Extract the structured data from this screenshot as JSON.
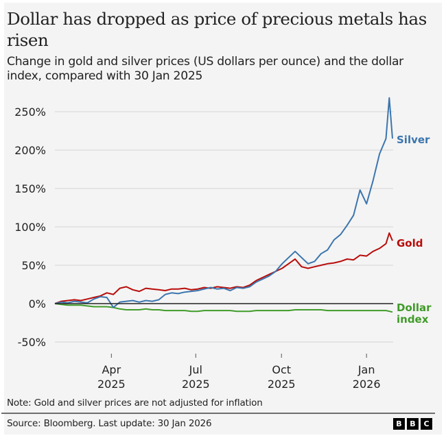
{
  "chart_data": {
    "type": "line",
    "title": "Dollar has dropped as price of precious metals has risen",
    "subtitle": "Change in gold and silver prices (US dollars per ounce) and the dollar index, compared with 30 Jan 2025",
    "xlabel": "",
    "ylabel": "",
    "x_start": "30 Jan 2025",
    "x_end": "30 Jan 2026",
    "x_unit": "weeks since 30 Jan 2025",
    "xlim": [
      0,
      52
    ],
    "ylim": [
      -50,
      250
    ],
    "y_ticks": [
      -50,
      0,
      50,
      100,
      150,
      200,
      250
    ],
    "y_tick_labels": [
      "-50%",
      "0%",
      "50%",
      "100%",
      "150%",
      "200%",
      "250%"
    ],
    "x_ticks": [
      {
        "week": 8.7,
        "label_line1": "Apr",
        "label_line2": "2025"
      },
      {
        "week": 21.7,
        "label_line1": "Jul",
        "label_line2": "2025"
      },
      {
        "week": 34.9,
        "label_line1": "Oct",
        "label_line2": "2025"
      },
      {
        "week": 48.0,
        "label_line1": "Jan",
        "label_line2": "2026"
      }
    ],
    "grid": true,
    "zero_line": true,
    "legend": "direct labels at right end of lines",
    "series": [
      {
        "name": "Silver",
        "color": "#3b75ad",
        "x": [
          0,
          1,
          2,
          3,
          4,
          5,
          6,
          7,
          8,
          9,
          10,
          11,
          12,
          13,
          14,
          15,
          16,
          17,
          18,
          19,
          20,
          21,
          22,
          23,
          24,
          25,
          26,
          27,
          28,
          29,
          30,
          31,
          32,
          33,
          34,
          35,
          36,
          37,
          38,
          39,
          40,
          41,
          42,
          43,
          44,
          45,
          46,
          47,
          48,
          49,
          50,
          51,
          51.5,
          52
        ],
        "values": [
          0,
          2,
          1,
          3,
          2,
          1,
          6,
          9,
          8,
          -5,
          2,
          3,
          4,
          2,
          4,
          3,
          5,
          12,
          14,
          13,
          15,
          16,
          17,
          19,
          21,
          19,
          20,
          17,
          21,
          20,
          22,
          28,
          32,
          36,
          42,
          52,
          60,
          68,
          60,
          52,
          55,
          65,
          70,
          83,
          90,
          102,
          115,
          148,
          130,
          160,
          195,
          215,
          268,
          215
        ]
      },
      {
        "name": "Gold",
        "color": "#b80c09",
        "x": [
          0,
          1,
          2,
          3,
          4,
          5,
          6,
          7,
          8,
          9,
          10,
          11,
          12,
          13,
          14,
          15,
          16,
          17,
          18,
          19,
          20,
          21,
          22,
          23,
          24,
          25,
          26,
          27,
          28,
          29,
          30,
          31,
          32,
          33,
          34,
          35,
          36,
          37,
          38,
          39,
          40,
          41,
          42,
          43,
          44,
          45,
          46,
          47,
          48,
          49,
          50,
          51,
          51.5,
          52
        ],
        "values": [
          0,
          3,
          4,
          5,
          4,
          6,
          8,
          10,
          14,
          12,
          20,
          22,
          18,
          16,
          20,
          19,
          18,
          17,
          19,
          19,
          20,
          18,
          19,
          21,
          20,
          22,
          21,
          20,
          22,
          21,
          24,
          30,
          34,
          38,
          42,
          46,
          52,
          58,
          48,
          46,
          48,
          50,
          52,
          53,
          55,
          58,
          57,
          63,
          62,
          68,
          72,
          78,
          92,
          82
        ]
      },
      {
        "name": "Dollar index",
        "color": "#3f9b28",
        "x": [
          0,
          1,
          2,
          3,
          4,
          5,
          6,
          7,
          8,
          9,
          10,
          11,
          12,
          13,
          14,
          15,
          16,
          17,
          18,
          19,
          20,
          21,
          22,
          23,
          24,
          25,
          26,
          27,
          28,
          29,
          30,
          31,
          32,
          33,
          34,
          35,
          36,
          37,
          38,
          39,
          40,
          41,
          42,
          43,
          44,
          45,
          46,
          47,
          48,
          49,
          50,
          51,
          51.5,
          52
        ],
        "values": [
          0,
          -1,
          -2,
          -2,
          -2,
          -3,
          -4,
          -4,
          -4,
          -5,
          -7,
          -8,
          -8,
          -8,
          -7,
          -8,
          -8,
          -9,
          -9,
          -9,
          -9,
          -10,
          -10,
          -9,
          -9,
          -9,
          -9,
          -9,
          -10,
          -10,
          -10,
          -9,
          -9,
          -9,
          -9,
          -9,
          -9,
          -8,
          -8,
          -8,
          -8,
          -8,
          -9,
          -9,
          -9,
          -9,
          -9,
          -9,
          -9,
          -9,
          -9,
          -9,
          -10,
          -11
        ]
      }
    ],
    "series_labels": [
      {
        "series": "Silver",
        "text": "Silver"
      },
      {
        "series": "Gold",
        "text": "Gold"
      },
      {
        "series": "Dollar index",
        "text_line1": "Dollar",
        "text_line2": "index"
      }
    ]
  },
  "note": "Note: Gold and silver prices are not adjusted for inflation",
  "source": "Source: Bloomberg. Last update: 30 Jan 2026",
  "logo": {
    "letters": [
      "B",
      "B",
      "C"
    ]
  }
}
